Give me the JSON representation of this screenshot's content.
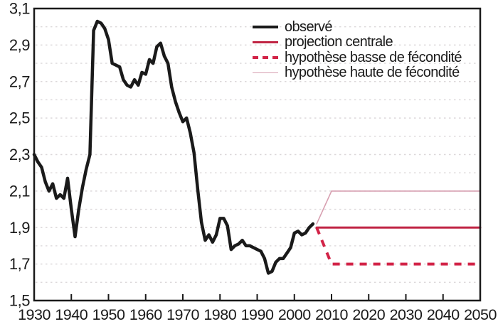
{
  "chart_data": {
    "type": "line",
    "title": "",
    "xlabel": "",
    "ylabel": "",
    "x_axis": {
      "range": [
        1930,
        2050
      ],
      "ticks": [
        1930,
        1940,
        1950,
        1960,
        1970,
        1980,
        1990,
        2000,
        2010,
        2020,
        2030,
        2040,
        2050
      ],
      "tick_labels": [
        "1930",
        "1940",
        "1950",
        "1960",
        "1970",
        "1980",
        "1990",
        "2000",
        "2010",
        "2020",
        "2030",
        "2040",
        "2050"
      ]
    },
    "y_axis": {
      "range": [
        1.5,
        3.1
      ],
      "ticks": [
        3.1,
        2.9,
        2.7,
        2.5,
        2.3,
        2.1,
        1.9,
        1.7,
        1.5
      ],
      "tick_labels": [
        "3,1",
        "2,9",
        "2,7",
        "2,5",
        "2,3",
        "2,1",
        "1,9",
        "1,7",
        "1,5"
      ],
      "gridline_step": 0.1
    },
    "grid": {
      "show": true,
      "style": "dotted",
      "color": "#dcd8da"
    },
    "frame_color": "#1a1a1a",
    "text_color": "#1a1a1a",
    "legend": {
      "position": "top-right"
    },
    "series": [
      {
        "name": "observé",
        "color": "#1a1a1a",
        "width": 4.5,
        "style": "solid",
        "points": [
          [
            1930,
            2.3
          ],
          [
            1931,
            2.26
          ],
          [
            1932,
            2.23
          ],
          [
            1933,
            2.15
          ],
          [
            1934,
            2.1
          ],
          [
            1935,
            2.14
          ],
          [
            1936,
            2.06
          ],
          [
            1937,
            2.08
          ],
          [
            1938,
            2.06
          ],
          [
            1939,
            2.17
          ],
          [
            1940,
            2.0
          ],
          [
            1941,
            1.85
          ],
          [
            1942,
            2.0
          ],
          [
            1943,
            2.12
          ],
          [
            1944,
            2.22
          ],
          [
            1945,
            2.3
          ],
          [
            1946,
            2.98
          ],
          [
            1947,
            3.03
          ],
          [
            1948,
            3.02
          ],
          [
            1949,
            2.99
          ],
          [
            1950,
            2.93
          ],
          [
            1951,
            2.8
          ],
          [
            1952,
            2.79
          ],
          [
            1953,
            2.78
          ],
          [
            1954,
            2.71
          ],
          [
            1955,
            2.68
          ],
          [
            1956,
            2.67
          ],
          [
            1957,
            2.71
          ],
          [
            1958,
            2.68
          ],
          [
            1959,
            2.75
          ],
          [
            1960,
            2.74
          ],
          [
            1961,
            2.82
          ],
          [
            1962,
            2.8
          ],
          [
            1963,
            2.89
          ],
          [
            1964,
            2.91
          ],
          [
            1965,
            2.84
          ],
          [
            1966,
            2.8
          ],
          [
            1967,
            2.67
          ],
          [
            1968,
            2.59
          ],
          [
            1969,
            2.53
          ],
          [
            1970,
            2.48
          ],
          [
            1971,
            2.5
          ],
          [
            1972,
            2.42
          ],
          [
            1973,
            2.31
          ],
          [
            1974,
            2.11
          ],
          [
            1975,
            1.93
          ],
          [
            1976,
            1.83
          ],
          [
            1977,
            1.86
          ],
          [
            1978,
            1.82
          ],
          [
            1979,
            1.86
          ],
          [
            1980,
            1.95
          ],
          [
            1981,
            1.95
          ],
          [
            1982,
            1.91
          ],
          [
            1983,
            1.78
          ],
          [
            1984,
            1.8
          ],
          [
            1985,
            1.81
          ],
          [
            1986,
            1.83
          ],
          [
            1987,
            1.8
          ],
          [
            1988,
            1.8
          ],
          [
            1989,
            1.79
          ],
          [
            1990,
            1.78
          ],
          [
            1991,
            1.77
          ],
          [
            1992,
            1.73
          ],
          [
            1993,
            1.65
          ],
          [
            1994,
            1.66
          ],
          [
            1995,
            1.71
          ],
          [
            1996,
            1.73
          ],
          [
            1997,
            1.73
          ],
          [
            1998,
            1.76
          ],
          [
            1999,
            1.79
          ],
          [
            2000,
            1.87
          ],
          [
            2001,
            1.88
          ],
          [
            2002,
            1.86
          ],
          [
            2003,
            1.87
          ],
          [
            2004,
            1.9
          ],
          [
            2005,
            1.92
          ]
        ]
      },
      {
        "name": "projection centrale",
        "color": "#c02443",
        "width": 3,
        "style": "solid",
        "points": [
          [
            2006,
            1.9
          ],
          [
            2050,
            1.9
          ]
        ]
      },
      {
        "name": "hypothèse basse de fécondité",
        "color": "#d22347",
        "width": 4,
        "style": "dashed",
        "points": [
          [
            2006,
            1.9
          ],
          [
            2010,
            1.7
          ],
          [
            2050,
            1.7
          ]
        ]
      },
      {
        "name": "hypothèse haute de fécondité",
        "color": "#d79fb0",
        "width": 1.6,
        "style": "solid",
        "points": [
          [
            2006,
            1.92
          ],
          [
            2010,
            2.1
          ],
          [
            2050,
            2.1
          ]
        ]
      }
    ]
  }
}
